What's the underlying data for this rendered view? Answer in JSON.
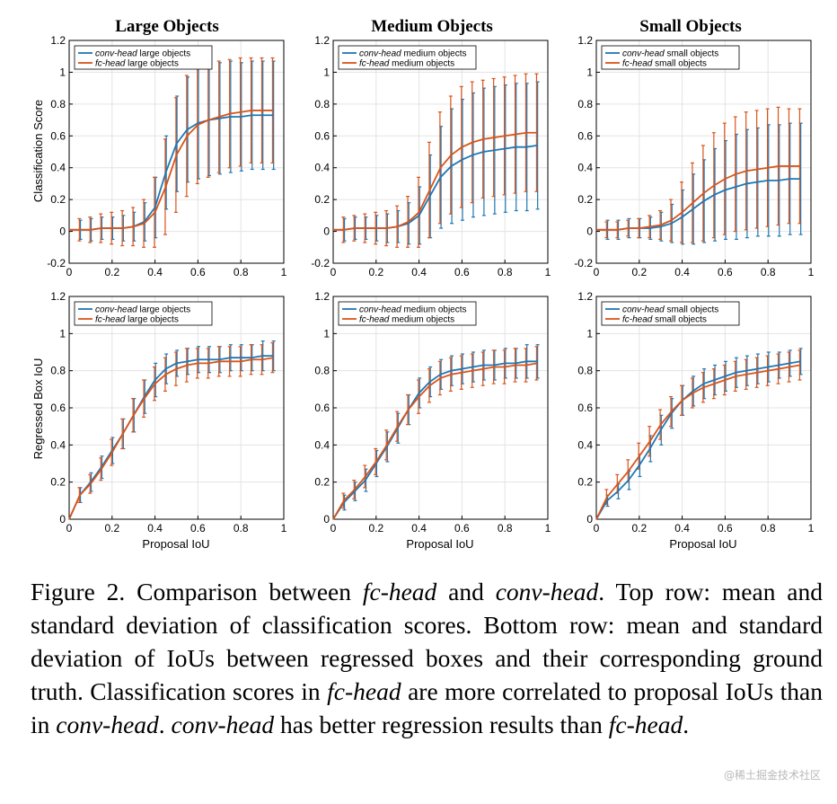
{
  "colors": {
    "conv": "#1f77b4",
    "fc": "#d9541a",
    "grid": "#e3e3e3",
    "axis": "#000000"
  },
  "col_titles": [
    "Large Objects",
    "Medium Objects",
    "Small Objects"
  ],
  "ylabels": {
    "top": "Classification Score",
    "bottom": "Regressed Box IoU"
  },
  "xlabel": "Proposal IoU",
  "xticks": [
    "0",
    "0.2",
    "0.4",
    "0.6",
    "0.8",
    "1"
  ],
  "yticks_top": [
    "-0.2",
    "0",
    "0.2",
    "0.4",
    "0.6",
    "0.8",
    "1",
    "1.2"
  ],
  "yticks_bottom": [
    "0",
    "0.2",
    "0.4",
    "0.6",
    "0.8",
    "1",
    "1.2"
  ],
  "legend": {
    "large": [
      "conv-head large objects",
      "fc-head large objects"
    ],
    "medium": [
      "conv-head medium objects",
      "fc-head medium objects"
    ],
    "small": [
      "conv-head small objects",
      "fc-head small objects"
    ]
  },
  "caption": {
    "l1_a": "Figure 2.  Comparison between ",
    "l1_b": "fc-head",
    "l1_c": " and ",
    "l1_d": "conv-head",
    "l1_e": ". Top row: mean and standard deviation of classification scores. Bottom row: mean and standard deviation of IoUs between regressed boxes and their corresponding ground truth. Classification scores in ",
    "l1_f": "fc-head",
    "l1_g": " are more correlated to proposal IoUs than in ",
    "l1_h": "conv-head",
    "l1_i": ". ",
    "l1_j": "conv-head",
    "l1_k": " has better regression results than ",
    "l1_l": "fc-head",
    "l1_m": "."
  },
  "watermark": "@稀土掘金技术社区",
  "chart_data": [
    {
      "type": "line",
      "title": "Large Objects",
      "xlabel": "",
      "ylabel": "Classification Score",
      "xlim": [
        0,
        1
      ],
      "ylim": [
        -0.2,
        1.2
      ],
      "grid": true,
      "legend_position": "top-left",
      "x": [
        0.05,
        0.1,
        0.15,
        0.2,
        0.25,
        0.3,
        0.35,
        0.4,
        0.45,
        0.5,
        0.55,
        0.6,
        0.65,
        0.7,
        0.75,
        0.8,
        0.85,
        0.9,
        0.95
      ],
      "series": [
        {
          "name": "conv-head large objects",
          "color": "#1f77b4",
          "mean": [
            0.01,
            0.01,
            0.02,
            0.02,
            0.02,
            0.03,
            0.06,
            0.15,
            0.37,
            0.55,
            0.64,
            0.68,
            0.7,
            0.71,
            0.72,
            0.72,
            0.73,
            0.73,
            0.73
          ],
          "std": [
            0.06,
            0.07,
            0.07,
            0.07,
            0.08,
            0.09,
            0.12,
            0.19,
            0.23,
            0.3,
            0.33,
            0.35,
            0.35,
            0.35,
            0.35,
            0.34,
            0.34,
            0.34,
            0.34
          ]
        },
        {
          "name": "fc-head large objects",
          "color": "#d9541a",
          "mean": [
            0.01,
            0.01,
            0.02,
            0.02,
            0.02,
            0.03,
            0.05,
            0.12,
            0.28,
            0.48,
            0.6,
            0.67,
            0.7,
            0.72,
            0.74,
            0.75,
            0.76,
            0.76,
            0.76
          ],
          "std": [
            0.07,
            0.08,
            0.09,
            0.1,
            0.11,
            0.12,
            0.15,
            0.22,
            0.3,
            0.36,
            0.38,
            0.37,
            0.36,
            0.35,
            0.34,
            0.34,
            0.33,
            0.33,
            0.33
          ]
        }
      ]
    },
    {
      "type": "line",
      "title": "Medium Objects",
      "xlabel": "",
      "ylabel": "",
      "xlim": [
        0,
        1
      ],
      "ylim": [
        -0.2,
        1.2
      ],
      "grid": true,
      "legend_position": "top-left",
      "x": [
        0.05,
        0.1,
        0.15,
        0.2,
        0.25,
        0.3,
        0.35,
        0.4,
        0.45,
        0.5,
        0.55,
        0.6,
        0.65,
        0.7,
        0.75,
        0.8,
        0.85,
        0.9,
        0.95
      ],
      "series": [
        {
          "name": "conv-head medium objects",
          "color": "#1f77b4",
          "mean": [
            0.01,
            0.02,
            0.02,
            0.02,
            0.02,
            0.03,
            0.05,
            0.1,
            0.22,
            0.34,
            0.41,
            0.45,
            0.48,
            0.5,
            0.51,
            0.52,
            0.53,
            0.53,
            0.54
          ],
          "std": [
            0.07,
            0.07,
            0.07,
            0.08,
            0.09,
            0.1,
            0.13,
            0.18,
            0.26,
            0.32,
            0.36,
            0.38,
            0.39,
            0.4,
            0.4,
            0.4,
            0.4,
            0.4,
            0.4
          ]
        },
        {
          "name": "fc-head medium objects",
          "color": "#d9541a",
          "mean": [
            0.01,
            0.02,
            0.02,
            0.02,
            0.02,
            0.03,
            0.06,
            0.12,
            0.26,
            0.4,
            0.48,
            0.53,
            0.56,
            0.58,
            0.59,
            0.6,
            0.61,
            0.62,
            0.62
          ],
          "std": [
            0.08,
            0.08,
            0.09,
            0.1,
            0.11,
            0.13,
            0.16,
            0.22,
            0.3,
            0.35,
            0.37,
            0.38,
            0.38,
            0.37,
            0.37,
            0.37,
            0.37,
            0.37,
            0.37
          ]
        }
      ]
    },
    {
      "type": "line",
      "title": "Small Objects",
      "xlabel": "",
      "ylabel": "",
      "xlim": [
        0,
        1
      ],
      "ylim": [
        -0.2,
        1.2
      ],
      "grid": true,
      "legend_position": "top-left",
      "x": [
        0.05,
        0.1,
        0.15,
        0.2,
        0.25,
        0.3,
        0.35,
        0.4,
        0.45,
        0.5,
        0.55,
        0.6,
        0.65,
        0.7,
        0.75,
        0.8,
        0.85,
        0.9,
        0.95
      ],
      "series": [
        {
          "name": "conv-head small objects",
          "color": "#1f77b4",
          "mean": [
            0.01,
            0.01,
            0.02,
            0.02,
            0.02,
            0.03,
            0.05,
            0.09,
            0.14,
            0.19,
            0.23,
            0.26,
            0.28,
            0.3,
            0.31,
            0.32,
            0.32,
            0.33,
            0.33
          ],
          "std": [
            0.06,
            0.06,
            0.06,
            0.06,
            0.07,
            0.09,
            0.12,
            0.17,
            0.22,
            0.26,
            0.29,
            0.31,
            0.33,
            0.34,
            0.34,
            0.35,
            0.35,
            0.35,
            0.35
          ]
        },
        {
          "name": "fc-head small objects",
          "color": "#d9541a",
          "mean": [
            0.01,
            0.01,
            0.02,
            0.02,
            0.03,
            0.04,
            0.07,
            0.12,
            0.18,
            0.24,
            0.29,
            0.33,
            0.36,
            0.38,
            0.39,
            0.4,
            0.41,
            0.41,
            0.41
          ],
          "std": [
            0.05,
            0.05,
            0.05,
            0.06,
            0.07,
            0.09,
            0.13,
            0.19,
            0.25,
            0.3,
            0.33,
            0.35,
            0.36,
            0.37,
            0.37,
            0.37,
            0.37,
            0.36,
            0.36
          ]
        }
      ]
    },
    {
      "type": "line",
      "title": "",
      "xlabel": "Proposal IoU",
      "ylabel": "Regressed Box IoU",
      "xlim": [
        0,
        1
      ],
      "ylim": [
        0,
        1.2
      ],
      "grid": true,
      "legend_position": "top-left",
      "x": [
        0.05,
        0.1,
        0.15,
        0.2,
        0.25,
        0.3,
        0.35,
        0.4,
        0.45,
        0.5,
        0.55,
        0.6,
        0.65,
        0.7,
        0.75,
        0.8,
        0.85,
        0.9,
        0.95
      ],
      "series": [
        {
          "name": "conv-head large objects",
          "color": "#1f77b4",
          "mean": [
            0.13,
            0.2,
            0.28,
            0.37,
            0.46,
            0.56,
            0.66,
            0.75,
            0.81,
            0.84,
            0.85,
            0.86,
            0.86,
            0.86,
            0.87,
            0.87,
            0.87,
            0.88,
            0.88
          ],
          "std": [
            0.04,
            0.05,
            0.06,
            0.07,
            0.08,
            0.09,
            0.09,
            0.09,
            0.08,
            0.07,
            0.07,
            0.07,
            0.07,
            0.07,
            0.07,
            0.07,
            0.07,
            0.08,
            0.08
          ]
        },
        {
          "name": "fc-head large objects",
          "color": "#d9541a",
          "mean": [
            0.13,
            0.19,
            0.27,
            0.36,
            0.46,
            0.56,
            0.65,
            0.73,
            0.78,
            0.81,
            0.83,
            0.84,
            0.84,
            0.85,
            0.85,
            0.85,
            0.86,
            0.86,
            0.87
          ],
          "std": [
            0.04,
            0.05,
            0.06,
            0.07,
            0.08,
            0.09,
            0.1,
            0.09,
            0.09,
            0.09,
            0.09,
            0.08,
            0.08,
            0.08,
            0.08,
            0.08,
            0.08,
            0.08,
            0.08
          ]
        }
      ]
    },
    {
      "type": "line",
      "title": "",
      "xlabel": "Proposal IoU",
      "ylabel": "",
      "xlim": [
        0,
        1
      ],
      "ylim": [
        0,
        1.2
      ],
      "grid": true,
      "legend_position": "top-left",
      "x": [
        0.05,
        0.1,
        0.15,
        0.2,
        0.25,
        0.3,
        0.35,
        0.4,
        0.45,
        0.5,
        0.55,
        0.6,
        0.65,
        0.7,
        0.75,
        0.8,
        0.85,
        0.9,
        0.95
      ],
      "series": [
        {
          "name": "conv-head medium objects",
          "color": "#1f77b4",
          "mean": [
            0.09,
            0.15,
            0.21,
            0.3,
            0.39,
            0.49,
            0.59,
            0.68,
            0.74,
            0.78,
            0.8,
            0.81,
            0.82,
            0.83,
            0.83,
            0.84,
            0.84,
            0.85,
            0.85
          ],
          "std": [
            0.04,
            0.05,
            0.06,
            0.07,
            0.08,
            0.08,
            0.08,
            0.08,
            0.08,
            0.08,
            0.08,
            0.08,
            0.08,
            0.08,
            0.08,
            0.08,
            0.08,
            0.09,
            0.09
          ]
        },
        {
          "name": "fc-head medium objects",
          "color": "#d9541a",
          "mean": [
            0.1,
            0.16,
            0.23,
            0.31,
            0.4,
            0.5,
            0.59,
            0.66,
            0.72,
            0.76,
            0.78,
            0.79,
            0.8,
            0.81,
            0.82,
            0.82,
            0.83,
            0.83,
            0.84
          ],
          "std": [
            0.04,
            0.05,
            0.06,
            0.07,
            0.08,
            0.08,
            0.08,
            0.09,
            0.09,
            0.09,
            0.09,
            0.09,
            0.09,
            0.09,
            0.09,
            0.09,
            0.09,
            0.09,
            0.09
          ]
        }
      ]
    },
    {
      "type": "line",
      "title": "",
      "xlabel": "Proposal IoU",
      "ylabel": "",
      "xlim": [
        0,
        1
      ],
      "ylim": [
        0,
        1.2
      ],
      "grid": true,
      "legend_position": "top-left",
      "x": [
        0.05,
        0.1,
        0.15,
        0.2,
        0.25,
        0.3,
        0.35,
        0.4,
        0.45,
        0.5,
        0.55,
        0.6,
        0.65,
        0.7,
        0.75,
        0.8,
        0.85,
        0.9,
        0.95
      ],
      "series": [
        {
          "name": "conv-head small objects",
          "color": "#1f77b4",
          "mean": [
            0.1,
            0.15,
            0.21,
            0.29,
            0.38,
            0.48,
            0.57,
            0.64,
            0.69,
            0.73,
            0.75,
            0.77,
            0.79,
            0.8,
            0.81,
            0.82,
            0.83,
            0.84,
            0.85
          ],
          "std": [
            0.03,
            0.04,
            0.05,
            0.06,
            0.07,
            0.08,
            0.08,
            0.08,
            0.08,
            0.08,
            0.08,
            0.08,
            0.08,
            0.08,
            0.08,
            0.08,
            0.07,
            0.07,
            0.07
          ]
        },
        {
          "name": "fc-head small objects",
          "color": "#d9541a",
          "mean": [
            0.12,
            0.19,
            0.26,
            0.34,
            0.42,
            0.51,
            0.58,
            0.64,
            0.68,
            0.71,
            0.73,
            0.75,
            0.77,
            0.78,
            0.79,
            0.8,
            0.81,
            0.82,
            0.83
          ],
          "std": [
            0.04,
            0.05,
            0.06,
            0.07,
            0.08,
            0.08,
            0.08,
            0.08,
            0.08,
            0.08,
            0.08,
            0.08,
            0.08,
            0.08,
            0.08,
            0.08,
            0.08,
            0.08,
            0.08
          ]
        }
      ]
    }
  ]
}
